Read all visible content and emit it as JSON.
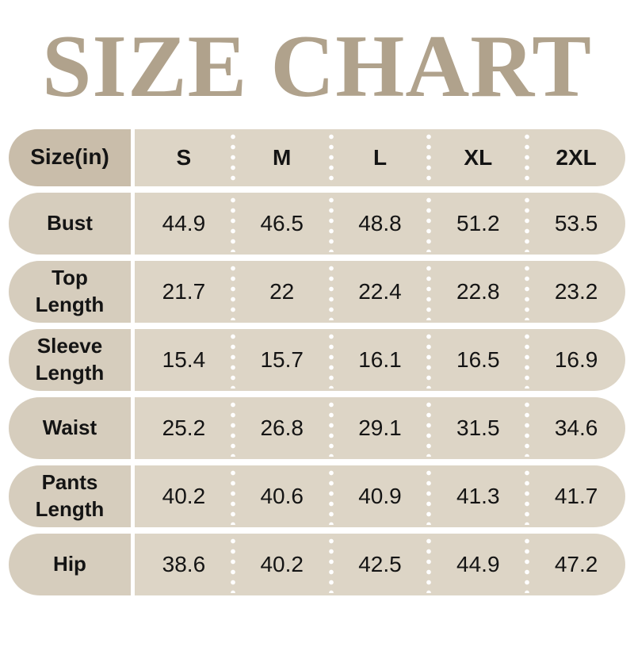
{
  "title": "SIZE CHART",
  "colors": {
    "title_color": "#b0a28c",
    "header_label_bg": "#c9bdaa",
    "row_label_bg": "#d6cdbd",
    "cell_bg": "#ddd5c6",
    "text_color": "#141414",
    "page_bg": "#ffffff"
  },
  "table": {
    "corner_label": "Size(in)",
    "columns": [
      "S",
      "M",
      "L",
      "XL",
      "2XL"
    ],
    "rows": [
      {
        "label": "Bust",
        "values": [
          "44.9",
          "46.5",
          "48.8",
          "51.2",
          "53.5"
        ]
      },
      {
        "label": "Top Length",
        "values": [
          "21.7",
          "22",
          "22.4",
          "22.8",
          "23.2"
        ]
      },
      {
        "label": "Sleeve Length",
        "values": [
          "15.4",
          "15.7",
          "16.1",
          "16.5",
          "16.9"
        ]
      },
      {
        "label": "Waist",
        "values": [
          "25.2",
          "26.8",
          "29.1",
          "31.5",
          "34.6"
        ]
      },
      {
        "label": "Pants Length",
        "values": [
          "40.2",
          "40.6",
          "40.9",
          "41.3",
          "41.7"
        ]
      },
      {
        "label": "Hip",
        "values": [
          "38.6",
          "40.2",
          "42.5",
          "44.9",
          "47.2"
        ]
      }
    ]
  },
  "chart_data": {
    "type": "table",
    "title": "SIZE CHART",
    "columns": [
      "Size(in)",
      "S",
      "M",
      "L",
      "XL",
      "2XL"
    ],
    "rows": [
      [
        "Bust",
        44.9,
        46.5,
        48.8,
        51.2,
        53.5
      ],
      [
        "Top Length",
        21.7,
        22,
        22.4,
        22.8,
        23.2
      ],
      [
        "Sleeve Length",
        15.4,
        15.7,
        16.1,
        16.5,
        16.9
      ],
      [
        "Waist",
        25.2,
        26.8,
        29.1,
        31.5,
        34.6
      ],
      [
        "Pants Length",
        40.2,
        40.6,
        40.9,
        41.3,
        41.7
      ],
      [
        "Hip",
        38.6,
        40.2,
        42.5,
        44.9,
        47.2
      ]
    ]
  }
}
